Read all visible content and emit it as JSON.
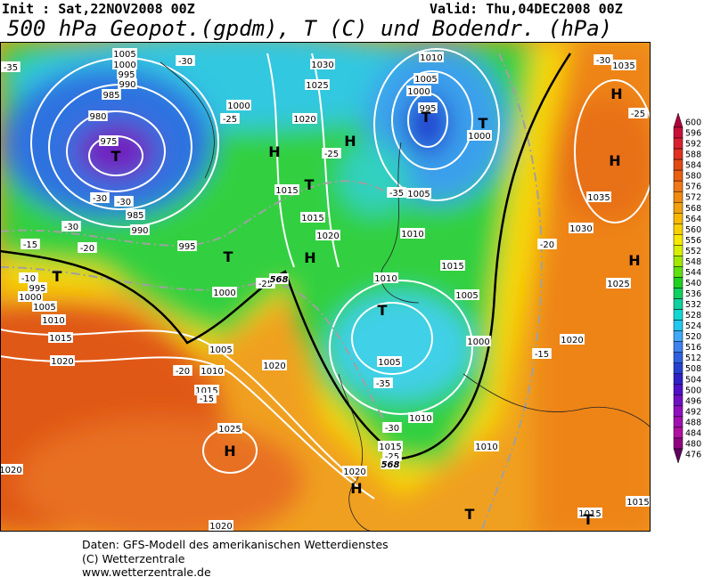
{
  "header": {
    "init": "Init : Sat,22NOV2008 00Z",
    "valid": "Valid: Thu,04DEC2008 00Z",
    "title": "500 hPa Geopot.(gpdm), T (C) und Bodendr. (hPa)"
  },
  "map": {
    "isobar_labels": [
      "1005",
      "1000",
      "995",
      "990",
      "985",
      "980",
      "975",
      "985",
      "990",
      "995",
      "1000",
      "1005",
      "1010",
      "1015",
      "1020",
      "1025",
      "1020",
      "1020",
      "1020",
      "1015",
      "1010",
      "1005",
      "1000",
      "995",
      "1030",
      "1025",
      "1020",
      "1015",
      "1015",
      "1020",
      "1010",
      "1010",
      "1005",
      "1005",
      "1000",
      "995",
      "1000",
      "1010",
      "1035",
      "1035",
      "1030",
      "1025",
      "1020",
      "1015",
      "1005",
      "1000",
      "1005",
      "1010",
      "1015",
      "1020",
      "1010",
      "1015",
      "1015",
      "1000"
    ],
    "temperature_labels": [
      "-35",
      "-30",
      "-25",
      "-30",
      "-30",
      "-30",
      "-20",
      "-15",
      "-10",
      "-25",
      "-20",
      "-15",
      "-25",
      "-35",
      "-35",
      "-30",
      "-25",
      "-20",
      "-15",
      "-25",
      "-30"
    ],
    "thickness_labels": [
      "568",
      "568"
    ],
    "high_labels": [
      "H",
      "H",
      "H",
      "H",
      "H",
      "H",
      "H",
      "H"
    ],
    "low_labels": [
      "T",
      "T",
      "T",
      "T",
      "T",
      "T",
      "T",
      "T",
      "T"
    ]
  },
  "colorbar": {
    "ticks": [
      600,
      596,
      592,
      588,
      584,
      580,
      576,
      572,
      568,
      564,
      560,
      556,
      552,
      548,
      544,
      540,
      536,
      532,
      528,
      524,
      520,
      516,
      512,
      508,
      504,
      500,
      496,
      492,
      488,
      484,
      480,
      476
    ],
    "colors": [
      "#b0003a",
      "#c8103a",
      "#d82030",
      "#e03020",
      "#e24a12",
      "#e86010",
      "#f07818",
      "#f08a10",
      "#f0a010",
      "#f8b800",
      "#f8d000",
      "#f8e800",
      "#d8f000",
      "#a0e800",
      "#60e010",
      "#20d020",
      "#10d060",
      "#10d0a0",
      "#10d8d0",
      "#20c8f0",
      "#40a8f8",
      "#4080f0",
      "#3060e0",
      "#2840d0",
      "#3020c8",
      "#5010c8",
      "#7010c0",
      "#9010c0",
      "#a010b0",
      "#b010a0",
      "#900080",
      "#600060"
    ]
  },
  "footer": {
    "lines": [
      "Daten: GFS-Modell des amerikanischen Wetterdienstes",
      "(C) Wetterzentrale",
      "www.wetterzentrale.de"
    ]
  }
}
